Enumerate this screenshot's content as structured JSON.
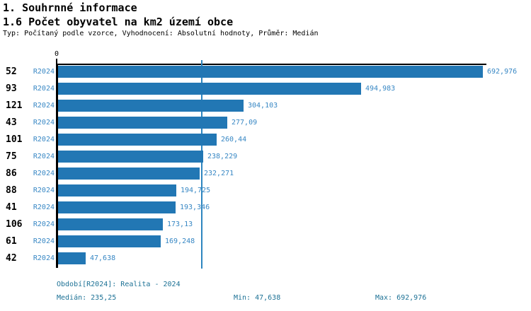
{
  "header": {
    "title1": "1. Souhrnné informace",
    "title2": "1.6 Počet obyvatel na km2 území obce",
    "subtitle": "Typ: Počítaný podle vzorce, Vyhodnocení: Absolutní hodnoty, Průměr: Medián"
  },
  "chart_data": {
    "type": "bar",
    "orientation": "horizontal",
    "axis_zero_label": "0",
    "xlabel": "",
    "ylabel": "",
    "grid": "median line only",
    "series_name": "R2024",
    "categories": [
      "52",
      "93",
      "121",
      "43",
      "101",
      "75",
      "86",
      "88",
      "41",
      "106",
      "61",
      "42"
    ],
    "rows": [
      {
        "id": "52",
        "period": "R2024",
        "value": 692.976,
        "value_label": "692,976"
      },
      {
        "id": "93",
        "period": "R2024",
        "value": 494.983,
        "value_label": "494,983"
      },
      {
        "id": "121",
        "period": "R2024",
        "value": 304.103,
        "value_label": "304,103"
      },
      {
        "id": "43",
        "period": "R2024",
        "value": 277.09,
        "value_label": "277,09"
      },
      {
        "id": "101",
        "period": "R2024",
        "value": 260.44,
        "value_label": "260,44"
      },
      {
        "id": "75",
        "period": "R2024",
        "value": 238.229,
        "value_label": "238,229"
      },
      {
        "id": "86",
        "period": "R2024",
        "value": 232.271,
        "value_label": "232,271"
      },
      {
        "id": "88",
        "period": "R2024",
        "value": 194.725,
        "value_label": "194,725"
      },
      {
        "id": "41",
        "period": "R2024",
        "value": 193.346,
        "value_label": "193,346"
      },
      {
        "id": "106",
        "period": "R2024",
        "value": 173.13,
        "value_label": "173,13"
      },
      {
        "id": "61",
        "period": "R2024",
        "value": 169.248,
        "value_label": "169,248"
      },
      {
        "id": "42",
        "period": "R2024",
        "value": 47.638,
        "value_label": "47,638"
      }
    ],
    "median_value": 235.25,
    "min_value": 47.638,
    "max_value": 692.976
  },
  "footer": {
    "period_line": "Období[R2024]: Realita - 2024",
    "median_label": "Medián: 235,25",
    "min_label": "Min: 47,638",
    "max_label": "Max: 692,976"
  },
  "colors": {
    "bar": "#2277b4",
    "median_line": "#2e86c0",
    "accent_text": "#3787c4",
    "legend_text": "#1c7195",
    "axis": "#000000",
    "background": "#ffffff"
  }
}
